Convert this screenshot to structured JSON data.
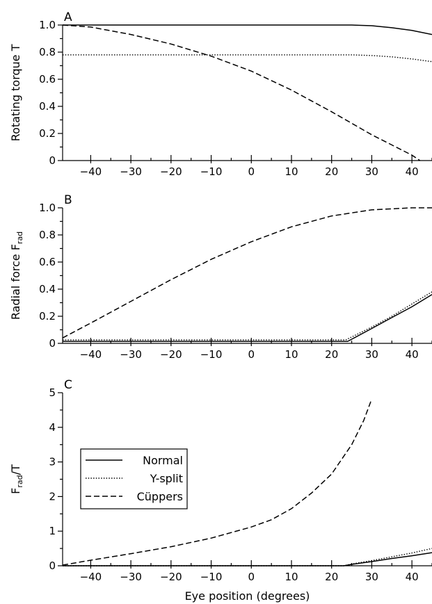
{
  "chart_data": [
    {
      "type": "line",
      "panel_label": "A",
      "xlabel": "",
      "ylabel": "Rotating torque T",
      "xlim": [
        -47,
        45
      ],
      "ylim": [
        0,
        1.0
      ],
      "xticks": [
        -40,
        -30,
        -20,
        -10,
        0,
        10,
        20,
        30,
        40
      ],
      "yticks": [
        "0",
        "0.2",
        "0.4",
        "0.6",
        "0.8",
        "1.0"
      ],
      "series": [
        {
          "style": "solid",
          "points": [
            [
              -47,
              1.0
            ],
            [
              -20,
              1.0
            ],
            [
              0,
              1.0
            ],
            [
              20,
              1.0
            ],
            [
              25,
              1.0
            ],
            [
              30,
              0.995
            ],
            [
              35,
              0.98
            ],
            [
              40,
              0.96
            ],
            [
              45,
              0.93
            ]
          ]
        },
        {
          "style": "dotted",
          "points": [
            [
              -47,
              0.78
            ],
            [
              -20,
              0.78
            ],
            [
              0,
              0.78
            ],
            [
              20,
              0.78
            ],
            [
              25,
              0.78
            ],
            [
              30,
              0.775
            ],
            [
              35,
              0.765
            ],
            [
              40,
              0.75
            ],
            [
              45,
              0.73
            ]
          ]
        },
        {
          "style": "dashed",
          "points": [
            [
              -47,
              1.0
            ],
            [
              -40,
              0.985
            ],
            [
              -30,
              0.93
            ],
            [
              -20,
              0.86
            ],
            [
              -10,
              0.77
            ],
            [
              0,
              0.66
            ],
            [
              10,
              0.52
            ],
            [
              20,
              0.36
            ],
            [
              30,
              0.19
            ],
            [
              40,
              0.04
            ],
            [
              42,
              0.0
            ]
          ]
        }
      ]
    },
    {
      "type": "line",
      "panel_label": "B",
      "xlabel": "",
      "ylabel": "Radial force F",
      "ylabel_sub": "rad",
      "xlim": [
        -47,
        45
      ],
      "ylim": [
        0,
        1.0
      ],
      "xticks": [
        -40,
        -30,
        -20,
        -10,
        0,
        10,
        20,
        30,
        40
      ],
      "yticks": [
        "0",
        "0.2",
        "0.4",
        "0.6",
        "0.8",
        "1.0"
      ],
      "series": [
        {
          "style": "solid",
          "points": [
            [
              -47,
              0.015
            ],
            [
              0,
              0.015
            ],
            [
              24,
              0.015
            ],
            [
              30,
              0.11
            ],
            [
              35,
              0.19
            ],
            [
              40,
              0.27
            ],
            [
              45,
              0.36
            ]
          ]
        },
        {
          "style": "dotted",
          "points": [
            [
              -47,
              0.025
            ],
            [
              0,
              0.025
            ],
            [
              23.5,
              0.025
            ],
            [
              30,
              0.12
            ],
            [
              35,
              0.2
            ],
            [
              40,
              0.29
            ],
            [
              45,
              0.38
            ]
          ]
        },
        {
          "style": "dashed",
          "points": [
            [
              -47,
              0.04
            ],
            [
              -40,
              0.15
            ],
            [
              -30,
              0.31
            ],
            [
              -20,
              0.47
            ],
            [
              -10,
              0.62
            ],
            [
              0,
              0.75
            ],
            [
              10,
              0.86
            ],
            [
              20,
              0.94
            ],
            [
              30,
              0.985
            ],
            [
              40,
              1.0
            ],
            [
              45,
              1.0
            ]
          ]
        }
      ]
    },
    {
      "type": "line",
      "panel_label": "C",
      "xlabel": "Eye position (degrees)",
      "ylabel": "F",
      "ylabel_sub": "rad",
      "ylabel_suffix": "/T",
      "xlim": [
        -47,
        45
      ],
      "ylim": [
        0,
        5
      ],
      "xticks": [
        -40,
        -30,
        -20,
        -10,
        0,
        10,
        20,
        30,
        40
      ],
      "yticks": [
        "0",
        "1",
        "2",
        "3",
        "4",
        "5"
      ],
      "series": [
        {
          "name": "Normal",
          "style": "solid",
          "points": [
            [
              -47,
              0
            ],
            [
              23,
              0
            ],
            [
              25,
              0.04
            ],
            [
              30,
              0.12
            ],
            [
              35,
              0.21
            ],
            [
              40,
              0.29
            ],
            [
              45,
              0.38
            ]
          ]
        },
        {
          "name": "Y-split",
          "style": "dotted",
          "points": [
            [
              -47,
              0
            ],
            [
              23,
              0
            ],
            [
              25,
              0.05
            ],
            [
              30,
              0.15
            ],
            [
              35,
              0.26
            ],
            [
              40,
              0.37
            ],
            [
              45,
              0.5
            ]
          ]
        },
        {
          "name": "Cüppers",
          "style": "dashed",
          "points": [
            [
              -47,
              0.02
            ],
            [
              -40,
              0.16
            ],
            [
              -30,
              0.35
            ],
            [
              -20,
              0.55
            ],
            [
              -10,
              0.8
            ],
            [
              0,
              1.12
            ],
            [
              5,
              1.33
            ],
            [
              10,
              1.65
            ],
            [
              15,
              2.1
            ],
            [
              20,
              2.65
            ],
            [
              25,
              3.5
            ],
            [
              28,
              4.2
            ],
            [
              30,
              4.82
            ]
          ]
        }
      ],
      "legend": {
        "placement": "middle-left"
      }
    }
  ]
}
